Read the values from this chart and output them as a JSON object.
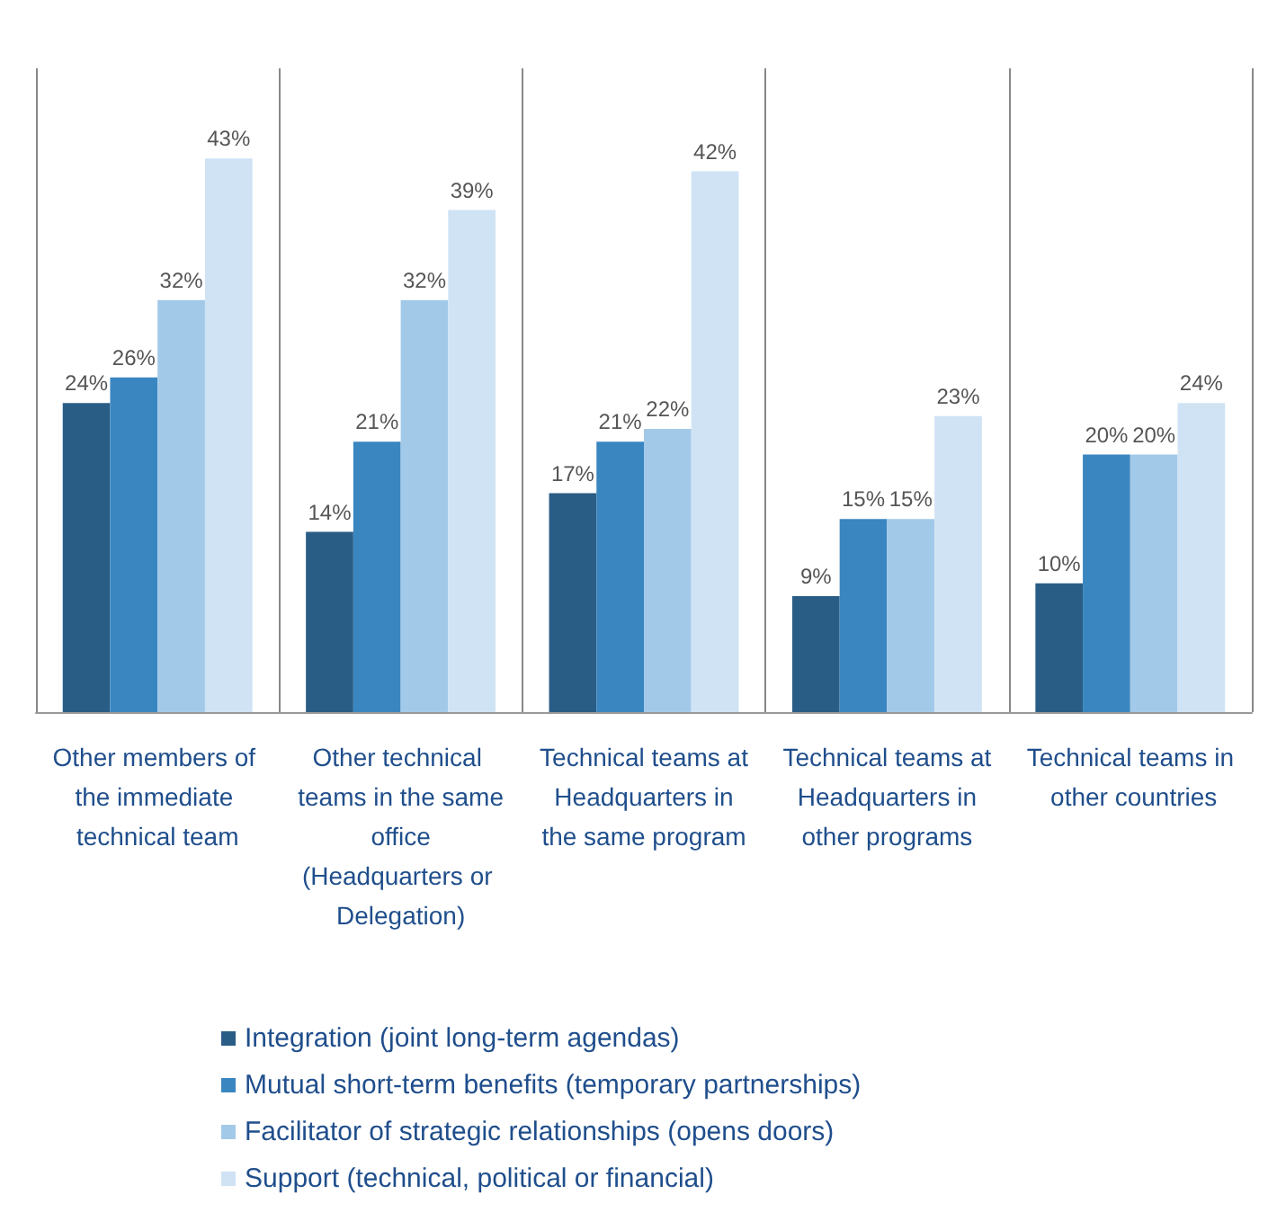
{
  "chart_data": {
    "type": "bar",
    "categories": [
      "Other members of the immediate technical team",
      "Other technical teams in the same office (Headquarters or Delegation)",
      "Technical teams at Headquarters in the same program",
      "Technical teams at Headquarters in other programs",
      "Technical teams in other countries"
    ],
    "series": [
      {
        "name": "Integration (joint long-term agendas)",
        "color": "#2a5d86",
        "values": [
          24,
          14,
          17,
          9,
          10
        ],
        "value_labels": [
          "24%",
          "14%",
          "17%",
          "9%",
          "10%"
        ]
      },
      {
        "name": "Mutual short-term benefits (temporary partnerships)",
        "color": "#3a86c0",
        "values": [
          26,
          21,
          21,
          15,
          20
        ],
        "value_labels": [
          "26%",
          "21%",
          "21%",
          "15%",
          "20%"
        ]
      },
      {
        "name": "Facilitator of strategic relationships (opens doors)",
        "color": "#a3c9e8",
        "values": [
          32,
          32,
          22,
          15,
          20
        ],
        "value_labels": [
          "32%",
          "32%",
          "22%",
          "15%",
          "20%"
        ]
      },
      {
        "name": "Support (technical, political or financial)",
        "color": "#cfe3f4",
        "values": [
          43,
          39,
          42,
          23,
          24
        ],
        "value_labels": [
          "43%",
          "39%",
          "42%",
          "23%",
          "24%"
        ]
      }
    ],
    "grid": "x",
    "legend": "bottom"
  }
}
